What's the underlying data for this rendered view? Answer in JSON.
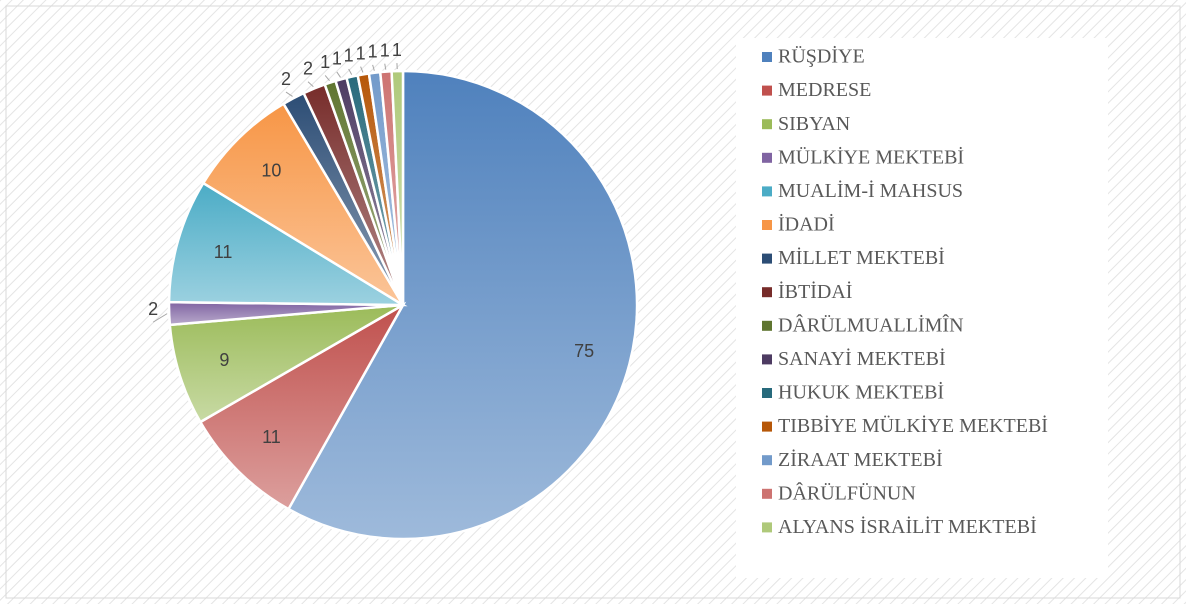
{
  "chart_data": {
    "type": "pie",
    "categories": [
      "RÜŞDİYE",
      "MEDRESE",
      "SIBYAN",
      "MÜLKİYE MEKTEBİ",
      "MUALİM-İ MAHSUS",
      "İDADİ",
      "MİLLET MEKTEBİ",
      "İBTİDAİ",
      "DÂRÜLMUALLİMÎN",
      "SANAYİ MEKTEBİ",
      "HUKUK MEKTEBİ",
      "TIBBİYE MÜLKİYE MEKTEBİ",
      "ZİRAAT MEKTEBİ",
      "DÂRÜLFÜNUN",
      "ALYANS İSRAİLİT MEKTEBİ"
    ],
    "values": [
      75,
      11,
      9,
      2,
      11,
      10,
      2,
      2,
      1,
      1,
      1,
      1,
      1,
      1,
      1
    ],
    "colors": [
      "#4f81bd",
      "#c0504d",
      "#9bbb59",
      "#8064a2",
      "#4bacc6",
      "#f79646",
      "#2c4d75",
      "#772c2a",
      "#5f7530",
      "#4d3b62",
      "#276a7c",
      "#b65708",
      "#729aca",
      "#cd7371",
      "#afc97a"
    ],
    "legend": "right"
  }
}
